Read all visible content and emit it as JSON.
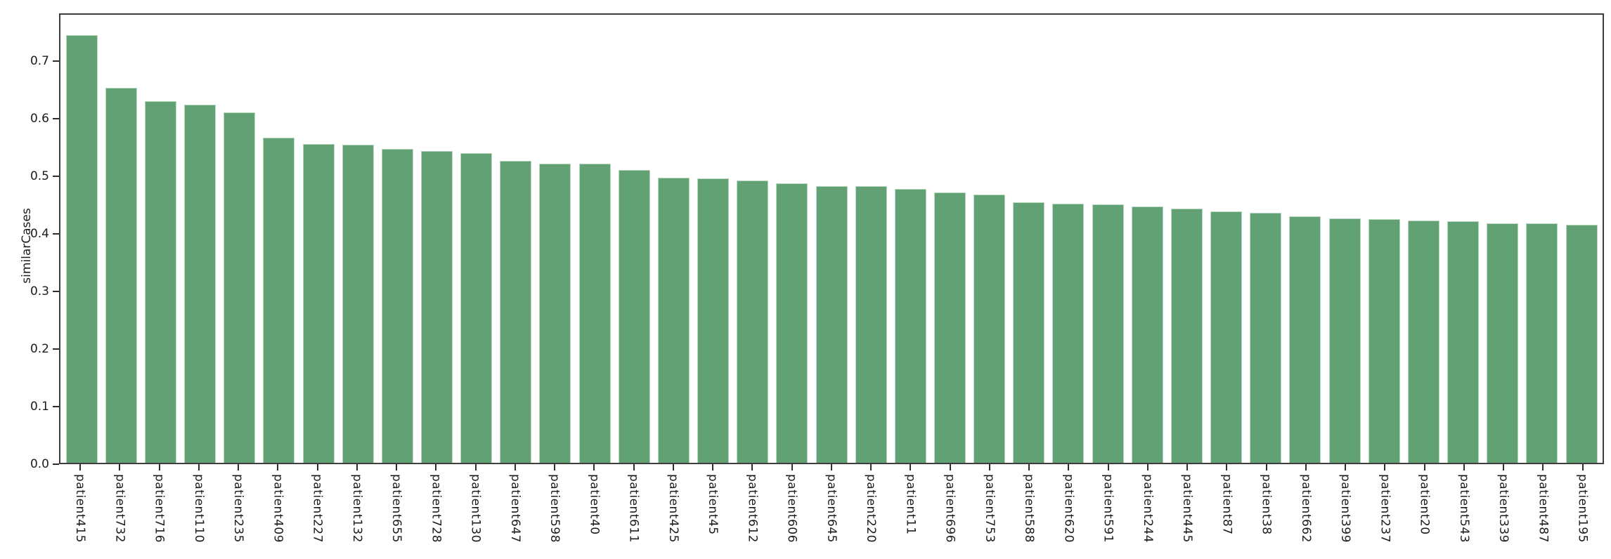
{
  "chart_data": {
    "type": "bar",
    "title": "",
    "xlabel": "",
    "ylabel": "similarCases",
    "grid": false,
    "legend": null,
    "ylim": [
      0,
      0.783
    ],
    "ytick_labels": [
      "0.0",
      "0.1",
      "0.2",
      "0.3",
      "0.4",
      "0.5",
      "0.6",
      "0.7"
    ],
    "ytick_values": [
      0.0,
      0.1,
      0.2,
      0.3,
      0.4,
      0.5,
      0.6,
      0.7
    ],
    "bar_color": "#62a173",
    "bar_edge_color": "#bdd8c2",
    "spine_color": "#3d3d3d",
    "tick_text_color": "#1c1c1c",
    "categories": [
      "patient415",
      "patient732",
      "patient716",
      "patient110",
      "patient235",
      "patient409",
      "patient227",
      "patient132",
      "patient655",
      "patient728",
      "patient130",
      "patient647",
      "patient598",
      "patient40",
      "patient611",
      "patient425",
      "patient45",
      "patient612",
      "patient606",
      "patient645",
      "patient220",
      "patient11",
      "patient696",
      "patient753",
      "patient588",
      "patient620",
      "patient591",
      "patient244",
      "patient445",
      "patient87",
      "patient38",
      "patient662",
      "patient399",
      "patient237",
      "patient20",
      "patient543",
      "patient339",
      "patient487",
      "patient195"
    ],
    "values": [
      0.743,
      0.651,
      0.628,
      0.622,
      0.608,
      0.565,
      0.554,
      0.553,
      0.545,
      0.542,
      0.538,
      0.524,
      0.52,
      0.519,
      0.509,
      0.495,
      0.494,
      0.49,
      0.485,
      0.481,
      0.48,
      0.476,
      0.469,
      0.466,
      0.452,
      0.45,
      0.449,
      0.445,
      0.442,
      0.437,
      0.434,
      0.428,
      0.425,
      0.423,
      0.421,
      0.419,
      0.416,
      0.416,
      0.413
    ]
  }
}
